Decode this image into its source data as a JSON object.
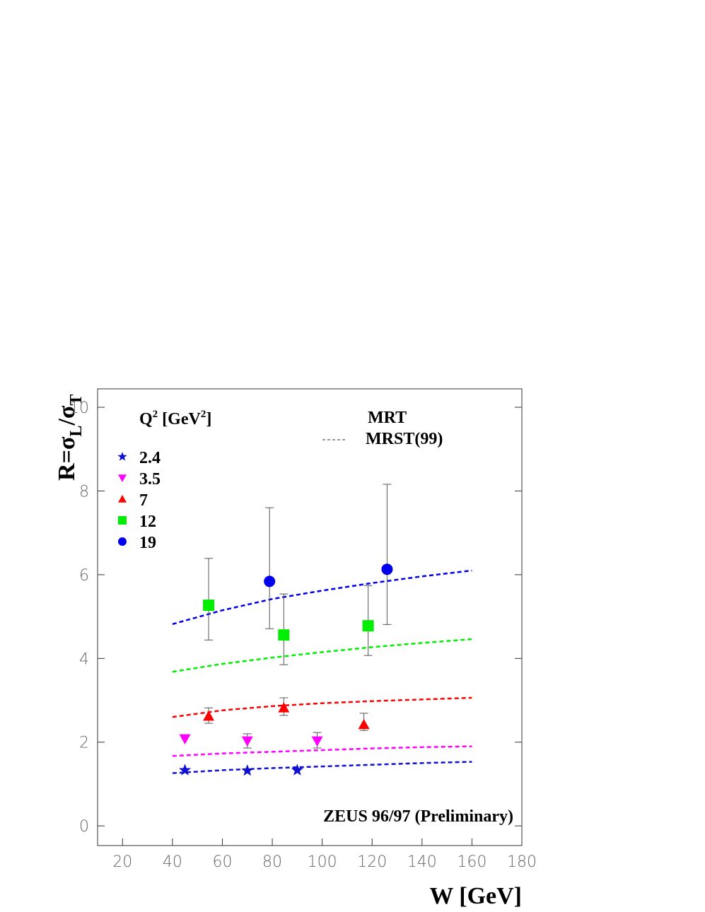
{
  "chart_data": {
    "type": "scatter",
    "y_label_parts": [
      "R=σ",
      "L",
      "/σ",
      "T"
    ],
    "x_label": "W [GeV]",
    "legend_title_parts": [
      "Q",
      "2",
      " [GeV",
      "2",
      "]"
    ],
    "model_labels": [
      "MRT",
      "MRST(99)"
    ],
    "annotation": "ZEUS 96/97 (Preliminary)",
    "xlim": [
      10,
      180
    ],
    "ylim": [
      -0.47,
      10.44
    ],
    "xticks": [
      20,
      40,
      60,
      80,
      100,
      120,
      140,
      160,
      180
    ],
    "yticks": [
      0,
      2,
      4,
      6,
      8,
      10
    ],
    "series": [
      {
        "name": "2.4",
        "color": "#1010d0",
        "marker": "star",
        "x": [
          45,
          70,
          90
        ],
        "values": [
          1.33,
          1.32,
          1.33
        ]
      },
      {
        "name": "3.5",
        "color": "#ff00ff",
        "marker": "triangle-down",
        "x": [
          45,
          70,
          98
        ],
        "values": [
          2.08,
          2.03,
          2.03
        ],
        "err_upper": [
          null,
          2.2,
          2.23
        ],
        "err_lower": [
          null,
          1.86,
          1.86
        ]
      },
      {
        "name": "7",
        "color": "#ff0000",
        "marker": "triangle-up",
        "x": [
          54.5,
          84.6,
          116.7
        ],
        "values": [
          2.62,
          2.82,
          2.42
        ],
        "err_upper": [
          2.82,
          3.06,
          2.69
        ],
        "err_lower": [
          2.45,
          2.64,
          2.28
        ]
      },
      {
        "name": "12",
        "color": "#00ee00",
        "marker": "square",
        "x": [
          54.5,
          84.6,
          118.4
        ],
        "values": [
          5.27,
          4.56,
          4.78
        ],
        "err_upper": [
          6.39,
          5.54,
          5.74
        ],
        "err_lower": [
          4.44,
          3.85,
          4.07
        ]
      },
      {
        "name": "19",
        "color": "#0000ee",
        "marker": "circle",
        "x": [
          78.9,
          126
        ],
        "values": [
          5.84,
          6.13
        ],
        "err_upper": [
          7.6,
          8.16
        ],
        "err_lower": [
          4.71,
          4.81
        ]
      }
    ],
    "curves": [
      {
        "color": "#0000ee",
        "x": [
          40,
          60,
          80,
          100,
          120,
          140,
          160
        ],
        "values": [
          4.82,
          5.15,
          5.42,
          5.62,
          5.8,
          5.96,
          6.1
        ]
      },
      {
        "color": "#00ee00",
        "x": [
          40,
          60,
          80,
          100,
          120,
          140,
          160
        ],
        "values": [
          3.68,
          3.87,
          4.02,
          4.15,
          4.27,
          4.37,
          4.46
        ]
      },
      {
        "color": "#ff0000",
        "x": [
          40,
          60,
          80,
          100,
          120,
          140,
          160
        ],
        "values": [
          2.6,
          2.76,
          2.86,
          2.93,
          2.98,
          3.02,
          3.06
        ]
      },
      {
        "color": "#ff00ff",
        "x": [
          40,
          60,
          80,
          100,
          120,
          140,
          160
        ],
        "values": [
          1.67,
          1.73,
          1.77,
          1.81,
          1.85,
          1.88,
          1.9
        ]
      },
      {
        "color": "#1010d0",
        "x": [
          40,
          60,
          80,
          100,
          120,
          140,
          160
        ],
        "values": [
          1.26,
          1.33,
          1.38,
          1.42,
          1.46,
          1.5,
          1.53
        ]
      }
    ]
  }
}
